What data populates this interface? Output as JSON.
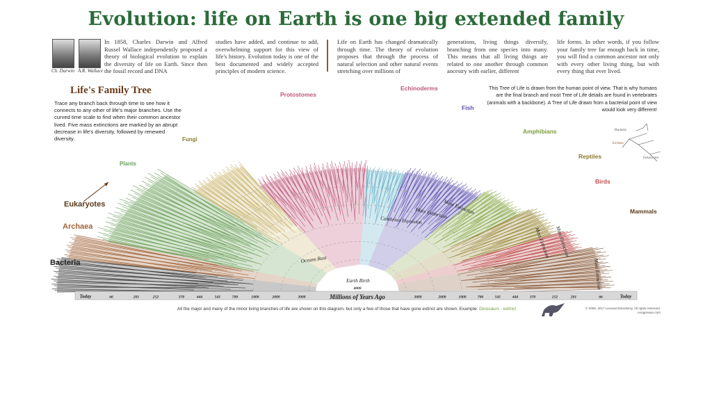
{
  "title": "Evolution: life on Earth is one big extended family",
  "signatures": [
    "Ch. Darwin",
    "A.R. Wallace"
  ],
  "intro_columns": [
    "In 1858, Charles Darwin and Alfred Russel Wallace independently proposed a theory of biological evolution to explain the diversity of life on Earth. Since then the fossil record and DNA",
    "studies have added, and continue to add, overwhelming support for this view of life's history. Evolution today is one of the best documented and widely accepted principles of modern science.",
    "Life on Earth has changed dramatically through time. The theory of evolution proposes that through the process of natural selection and other natural events stretching over millions of",
    "generations, living things diversify, branching from one species into many. This means that all living things are related to one another through common ancestry with earlier, different",
    "life forms. In other words, if you follow your family tree far enough back in time, you will find a common ancestor not only with every other living thing, but with every thing that ever lived."
  ],
  "tree_title": "Life's Family Tree",
  "tree_description": "Trace any branch back through time to see how it connects to any other of life's major branches. Use the curved time scale to find when their common ancestor lived. Five mass extinctions are marked by an abrupt decrease in life's diversity, followed by renewed diversity.",
  "right_note": "This Tree of Life is drawn from the human point of view. That is why humans are the final branch and most Tree of Life details are found in vertebrates (animals with a backbone). A Tree of Life drawn from a bacterial point of view would look very different!",
  "inset_labels": [
    "Bacteria",
    "Archaea",
    "Eukaryotes"
  ],
  "groups": {
    "bacteria": "Bacteria",
    "archaea": "Archaea",
    "eukaryotes": "Eukaryotes",
    "plants": "Plants",
    "fungi": "Fungi",
    "protostomes": "Protostomes",
    "echinoderms": "Echinoderms",
    "fish": "Fish",
    "amphibians": "Amphibians",
    "reptiles": "Reptiles",
    "birds": "Birds",
    "mammals": "Mammals"
  },
  "events": {
    "earth_birth": "Earth Birth",
    "oceans_rust": "Oceans Rust",
    "global_ice_ages": "Global Ice Ages",
    "cambrian_explosion": "Cambrian Explosion",
    "mass_extinction": "Mass Extinction"
  },
  "time_scale": {
    "left_ticks": [
      "Today",
      "66",
      "201",
      "252",
      "370",
      "444",
      "541",
      "700",
      "1000",
      "2000",
      "3000"
    ],
    "right_ticks": [
      "3000",
      "2000",
      "1000",
      "700",
      "541",
      "444",
      "370",
      "252",
      "201",
      "66",
      "Today"
    ],
    "center_tick": "4000",
    "label": "Millions of Years Ago"
  },
  "bottom_note": "All the major and many of the minor living branches of life are shown on this diagram, but only a few of those that have gone extinct are shown. Example:",
  "bottom_example": "Dinosaurs - extinct",
  "copyright": "© 2008, 2017 Leonard Eisenberg. All rights reserved. evogeneao.com",
  "colors": {
    "title": "#2b6b3a",
    "bacteria": "#3a3a3a",
    "archaea": "#a0653a",
    "eukaryotes": "#5a3a1a",
    "plants": "#6aa05a",
    "fungi": "#c9b36a",
    "protostomes": "#c0567a",
    "echinoderms": "#5fb0c8",
    "fish": "#5a4fb0",
    "amphibians": "#8aa84a",
    "reptiles": "#9a8a3a",
    "birds": "#c05050",
    "mammals": "#8a5a3a"
  }
}
